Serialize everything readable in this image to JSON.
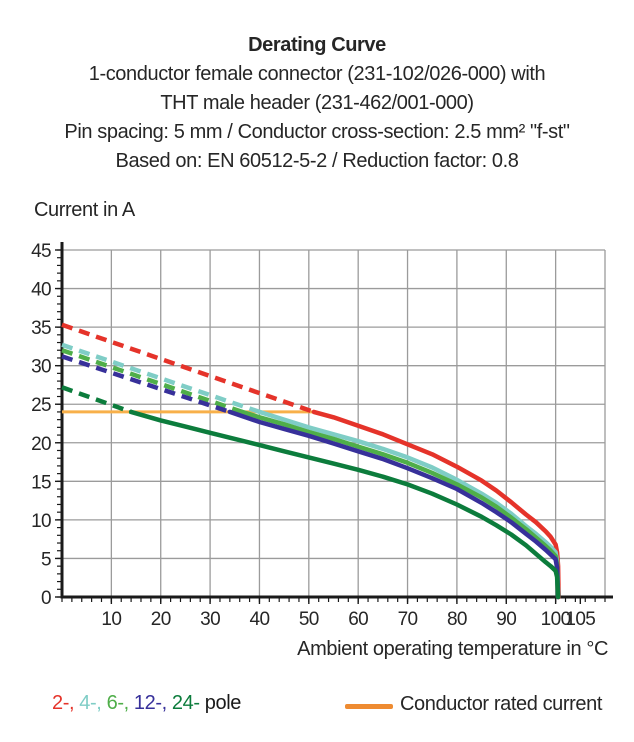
{
  "title_block": {
    "title": "Derating Curve",
    "lines": [
      "1-conductor female connector (231-102/026-000) with",
      "THT male header (231-462/001-000)",
      "Pin spacing: 5 mm / Conductor cross-section: 2.5 mm² \"f-st\"",
      "Based on: EN 60512-5-2 / Reduction factor: 0.8"
    ]
  },
  "chart_data": {
    "type": "line",
    "title": "Derating Curve",
    "xlabel": "Ambient operating temperature in °C",
    "ylabel": "Current in A",
    "xlim": [
      0,
      110
    ],
    "ylim": [
      0,
      45
    ],
    "x_major_ticks": [
      10,
      20,
      30,
      40,
      50,
      60,
      70,
      80,
      90,
      100,
      105
    ],
    "x_minor_step": 2,
    "y_major_ticks": [
      0,
      5,
      10,
      15,
      20,
      25,
      30,
      35,
      40,
      45
    ],
    "y_minor_step": 1,
    "grid": true,
    "grid_color": "#9b9b9b",
    "axis_color": "#1a1a1a",
    "rated_current": {
      "label": "Conductor rated current",
      "value": 24,
      "x_range": [
        0,
        51
      ],
      "color": "#f8b04a"
    },
    "series": [
      {
        "name": "2-pole",
        "color": "#e5332a",
        "dashed_points": [
          [
            0,
            35.3
          ],
          [
            51,
            24
          ]
        ],
        "solid_points": [
          [
            51,
            24
          ],
          [
            55,
            23.3
          ],
          [
            60,
            22.2
          ],
          [
            65,
            21.1
          ],
          [
            70,
            19.8
          ],
          [
            75,
            18.5
          ],
          [
            80,
            16.9
          ],
          [
            85,
            15.1
          ],
          [
            88,
            13.8
          ],
          [
            91,
            12.3
          ],
          [
            94,
            10.7
          ],
          [
            96,
            9.7
          ],
          [
            98,
            8.5
          ],
          [
            99,
            7.8
          ],
          [
            100,
            6.8
          ],
          [
            100.3,
            5.8
          ],
          [
            100.5,
            4.0
          ],
          [
            100.6,
            0
          ]
        ]
      },
      {
        "name": "4-pole",
        "color": "#7fcdc6",
        "dashed_points": [
          [
            0,
            32.7
          ],
          [
            40,
            24
          ]
        ],
        "solid_points": [
          [
            40,
            24
          ],
          [
            45,
            23.0
          ],
          [
            50,
            22.0
          ],
          [
            55,
            21.1
          ],
          [
            60,
            20.2
          ],
          [
            65,
            19.2
          ],
          [
            70,
            18.1
          ],
          [
            75,
            16.8
          ],
          [
            80,
            15.2
          ],
          [
            85,
            13.4
          ],
          [
            88,
            12.2
          ],
          [
            91,
            10.8
          ],
          [
            94,
            9.2
          ],
          [
            96,
            8.2
          ],
          [
            98,
            7.1
          ],
          [
            99,
            6.5
          ],
          [
            100,
            5.8
          ],
          [
            100.3,
            4.6
          ],
          [
            100.5,
            0
          ]
        ]
      },
      {
        "name": "6-pole",
        "color": "#4fae49",
        "dashed_points": [
          [
            0,
            32.0
          ],
          [
            36.5,
            24
          ]
        ],
        "solid_points": [
          [
            36.5,
            24
          ],
          [
            40,
            23.3
          ],
          [
            45,
            22.4
          ],
          [
            50,
            21.4
          ],
          [
            55,
            20.5
          ],
          [
            60,
            19.5
          ],
          [
            65,
            18.5
          ],
          [
            70,
            17.4
          ],
          [
            75,
            16.1
          ],
          [
            80,
            14.6
          ],
          [
            85,
            12.9
          ],
          [
            88,
            11.7
          ],
          [
            91,
            10.3
          ],
          [
            94,
            8.8
          ],
          [
            96,
            7.7
          ],
          [
            98,
            6.6
          ],
          [
            99,
            6.0
          ],
          [
            100,
            5.3
          ],
          [
            100.3,
            4.2
          ],
          [
            100.5,
            0
          ]
        ]
      },
      {
        "name": "12-pole",
        "color": "#37309a",
        "dashed_points": [
          [
            0,
            31.2
          ],
          [
            34,
            24
          ]
        ],
        "solid_points": [
          [
            34,
            24
          ],
          [
            40,
            22.7
          ],
          [
            45,
            21.8
          ],
          [
            50,
            20.9
          ],
          [
            55,
            19.9
          ],
          [
            60,
            18.9
          ],
          [
            65,
            17.9
          ],
          [
            70,
            16.7
          ],
          [
            75,
            15.4
          ],
          [
            80,
            14.0
          ],
          [
            85,
            12.2
          ],
          [
            88,
            11.0
          ],
          [
            91,
            9.7
          ],
          [
            94,
            8.2
          ],
          [
            96,
            7.2
          ],
          [
            98,
            6.1
          ],
          [
            99,
            5.5
          ],
          [
            100,
            4.9
          ],
          [
            100.3,
            3.8
          ],
          [
            100.5,
            0
          ]
        ]
      },
      {
        "name": "24-pole",
        "color": "#0c7c3c",
        "dashed_points": [
          [
            0,
            27.2
          ],
          [
            14,
            24
          ]
        ],
        "solid_points": [
          [
            14,
            24
          ],
          [
            20,
            22.9
          ],
          [
            25,
            22.1
          ],
          [
            30,
            21.3
          ],
          [
            35,
            20.5
          ],
          [
            40,
            19.7
          ],
          [
            45,
            18.9
          ],
          [
            50,
            18.1
          ],
          [
            55,
            17.3
          ],
          [
            60,
            16.5
          ],
          [
            65,
            15.6
          ],
          [
            70,
            14.6
          ],
          [
            75,
            13.4
          ],
          [
            80,
            12.0
          ],
          [
            85,
            10.4
          ],
          [
            88,
            9.3
          ],
          [
            91,
            8.1
          ],
          [
            94,
            6.7
          ],
          [
            96,
            5.6
          ],
          [
            98,
            4.5
          ],
          [
            99,
            4.0
          ],
          [
            100,
            3.4
          ],
          [
            100.3,
            2.6
          ],
          [
            100.5,
            0
          ]
        ]
      }
    ]
  },
  "legend": {
    "pole_items": [
      {
        "label": "2-,",
        "color": "#e5332a"
      },
      {
        "label": "4-,",
        "color": "#7fcdc6"
      },
      {
        "label": "6-,",
        "color": "#4fae49"
      },
      {
        "label": "12-,",
        "color": "#37309a"
      },
      {
        "label": "24-",
        "color": "#0c7c3c"
      }
    ],
    "pole_suffix": " pole",
    "pole_suffix_color": "#1a1a1a",
    "rated_label": "Conductor rated current",
    "rated_swatch_color": "#ee8b31"
  }
}
